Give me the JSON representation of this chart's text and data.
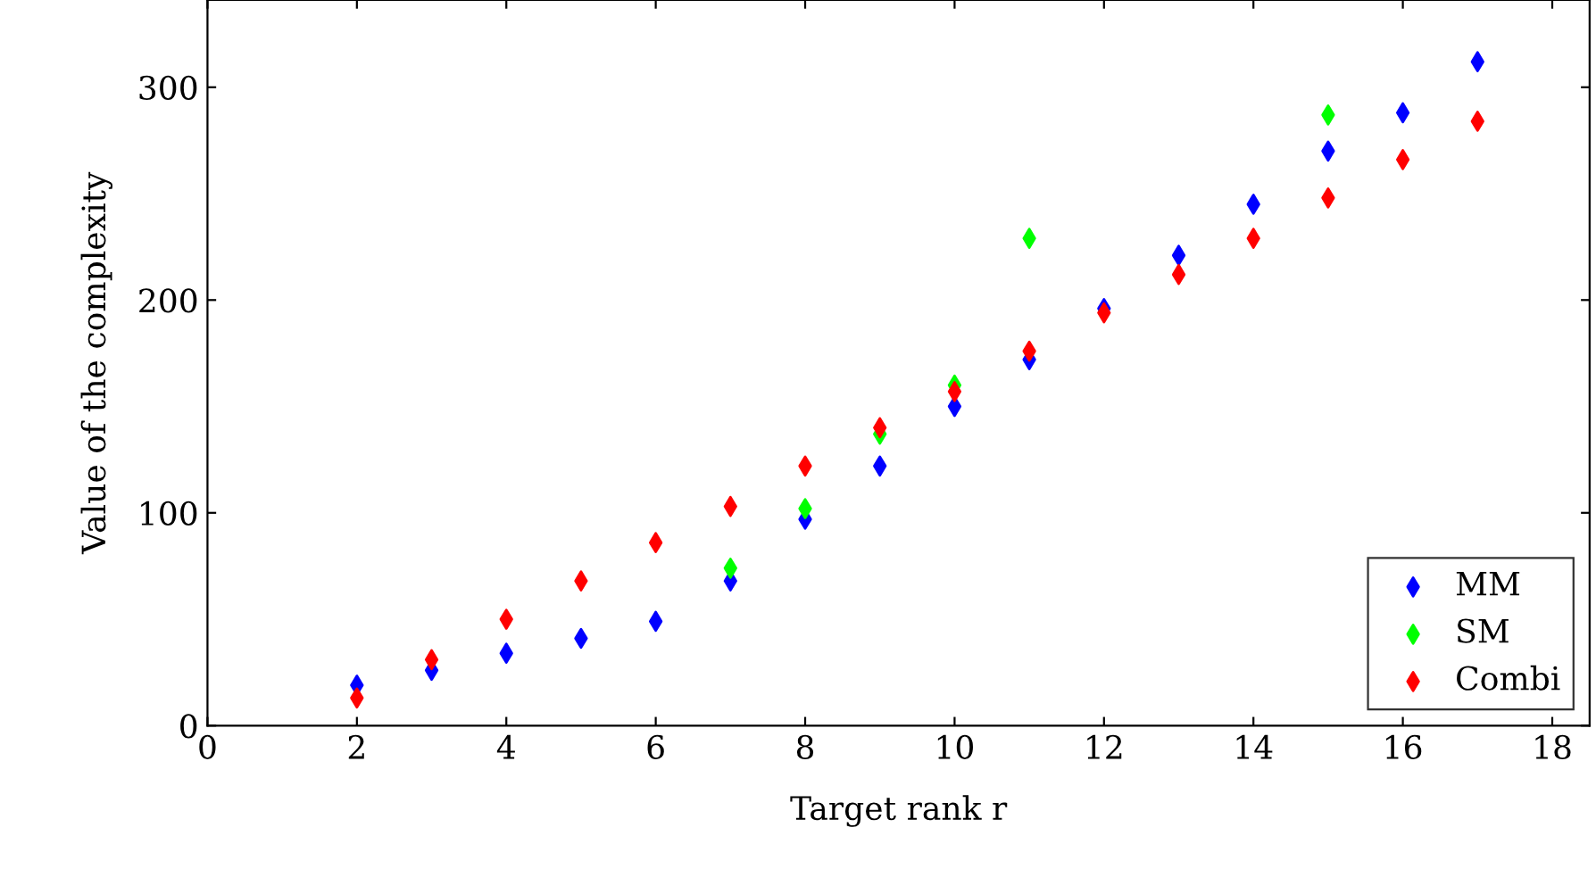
{
  "chart_data": {
    "type": "scatter",
    "xlabel": "Target rank r",
    "ylabel": "Value of the complexity",
    "marker": "diamond",
    "legend": "bottom right",
    "grid": false,
    "xlim": [
      0,
      18.5
    ],
    "xticks": [
      0,
      2,
      4,
      6,
      8,
      10,
      12,
      14,
      16,
      18
    ],
    "ylim": [
      0,
      341
    ],
    "yticks": [
      0,
      100,
      200,
      300
    ],
    "series": [
      {
        "name": "MM",
        "color": "#0000ff",
        "x": [
          2,
          3,
          4,
          5,
          6,
          7,
          8,
          9,
          10,
          11,
          12,
          13,
          14,
          15,
          16,
          17
        ],
        "values": [
          19,
          26,
          34,
          41,
          49,
          68,
          97,
          122,
          150,
          172,
          196,
          221,
          245,
          270,
          288,
          312
        ]
      },
      {
        "name": "SM",
        "color": "#00ff00",
        "x": [
          7,
          8,
          9,
          10,
          11,
          15
        ],
        "values": [
          74,
          102,
          137,
          160,
          229,
          287
        ]
      },
      {
        "name": "Combi",
        "color": "#ff0000",
        "x": [
          2,
          3,
          4,
          5,
          6,
          7,
          8,
          9,
          10,
          11,
          12,
          13,
          14,
          15,
          16,
          17
        ],
        "values": [
          13,
          31,
          50,
          68,
          86,
          103,
          122,
          140,
          157,
          176,
          194,
          212,
          229,
          248,
          266,
          284
        ]
      }
    ]
  }
}
